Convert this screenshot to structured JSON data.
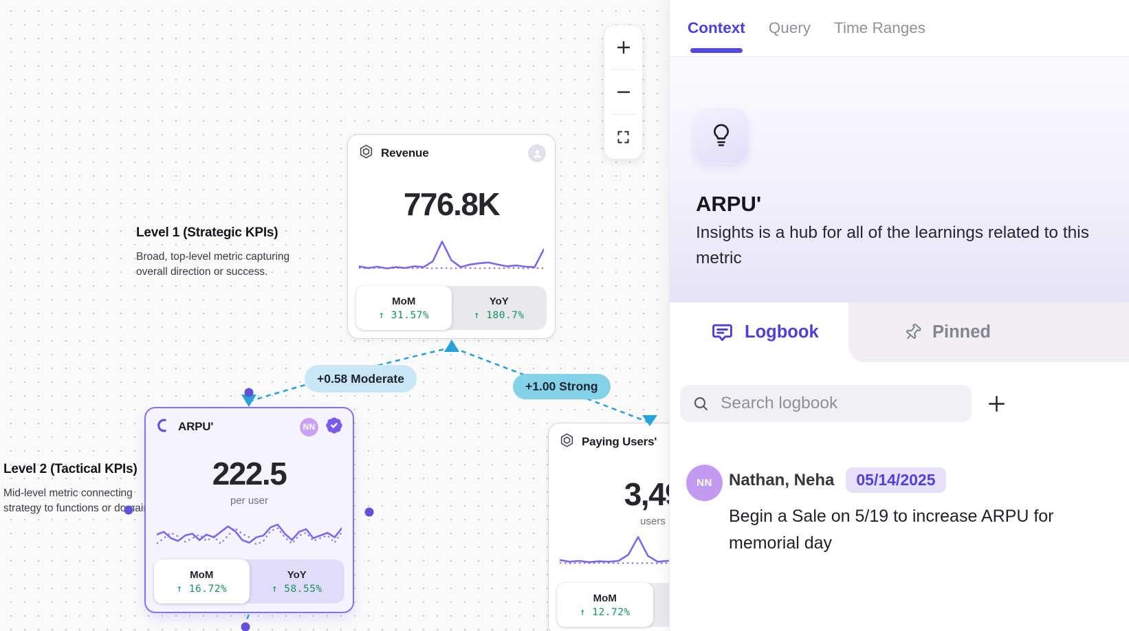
{
  "colors": {
    "accent_purple": "#4c40d8",
    "sparkline_purple": "#7b68ea",
    "edge_blue": "#29a1d9",
    "positive_green": "#13945f",
    "moderate_pill_bg": "#c9e7f7",
    "strong_pill_bg": "#83d2e8",
    "selected_card_border": "#8173ec"
  },
  "canvas": {
    "zoom_controls": {
      "zoom_in": "+",
      "zoom_out": "−"
    },
    "level_labels": [
      {
        "title": "Level 1 (Strategic KPIs)",
        "description": "Broad, top-level metric capturing overall direction or success."
      },
      {
        "title": "Level 2 (Tactical KPIs)",
        "description": "Mid-level metric connecting strategy to functions or domains"
      }
    ],
    "edges": [
      {
        "label": "+0.58 Moderate"
      },
      {
        "label": "+1.00 Strong"
      }
    ],
    "cards": {
      "revenue": {
        "title": "Revenue",
        "value": "776.8K",
        "mom": {
          "label": "MoM",
          "direction": "↑",
          "value": "31.57%"
        },
        "yoy": {
          "label": "YoY",
          "direction": "↑",
          "value": "180.7%"
        },
        "sparkline": {
          "solid": [
            70,
            74,
            71,
            75,
            72,
            74,
            70,
            72,
            58,
            12,
            56,
            72,
            66,
            63,
            61,
            66,
            70,
            68,
            71,
            72,
            30
          ],
          "dotted": [
            74,
            75,
            74,
            75,
            74,
            74,
            75,
            74,
            75,
            74,
            75,
            74,
            74,
            75,
            74,
            75,
            74,
            74,
            75,
            74,
            75
          ]
        }
      },
      "arpu": {
        "title": "ARPU'",
        "owner_badge": "NN",
        "value": "222.5",
        "unit": "per user",
        "mom": {
          "label": "MoM",
          "direction": "↑",
          "value": "16.72%"
        },
        "yoy": {
          "label": "YoY",
          "direction": "↑",
          "value": "58.55%"
        },
        "sparkline": {
          "solid": [
            42,
            36,
            50,
            56,
            44,
            40,
            54,
            42,
            48,
            36,
            24,
            34,
            54,
            60,
            48,
            44,
            26,
            20,
            40,
            54,
            36,
            30,
            50,
            44,
            38,
            48,
            28
          ],
          "dotted": [
            62,
            50,
            38,
            46,
            58,
            50,
            42,
            56,
            46,
            62,
            44,
            28,
            40,
            48,
            64,
            56,
            34,
            28,
            48,
            62,
            44,
            38,
            56,
            50,
            44,
            60,
            36
          ]
        }
      },
      "paying_users": {
        "title": "Paying Users'",
        "value": "3,49",
        "unit": "users",
        "mom": {
          "label": "MoM",
          "direction": "↑",
          "value": "12.72%"
        },
        "sparkline": {
          "solid": [
            68,
            72,
            70,
            73,
            71,
            72,
            70,
            55,
            12,
            58,
            72,
            70,
            69,
            71,
            70,
            72,
            70,
            71,
            70,
            72
          ],
          "dotted": [
            75,
            76,
            75,
            76,
            75,
            75,
            76,
            75,
            76,
            75,
            76,
            75,
            75,
            76,
            75,
            76,
            75,
            76,
            75,
            76
          ]
        }
      }
    }
  },
  "panel": {
    "tabs": [
      {
        "label": "Context",
        "active": true
      },
      {
        "label": "Query",
        "active": false
      },
      {
        "label": "Time Ranges",
        "active": false
      }
    ],
    "header": {
      "title": "ARPU'",
      "description": "Insights is a hub for all of the learnings related to this metric"
    },
    "section_tabs": {
      "logbook": "Logbook",
      "pinned": "Pinned"
    },
    "search": {
      "placeholder": "Search logbook"
    },
    "entries": [
      {
        "avatar": "NN",
        "author": "Nathan, Neha",
        "date": "05/14/2025",
        "text": "Begin a Sale on 5/19 to increase ARPU for memorial day"
      }
    ]
  }
}
